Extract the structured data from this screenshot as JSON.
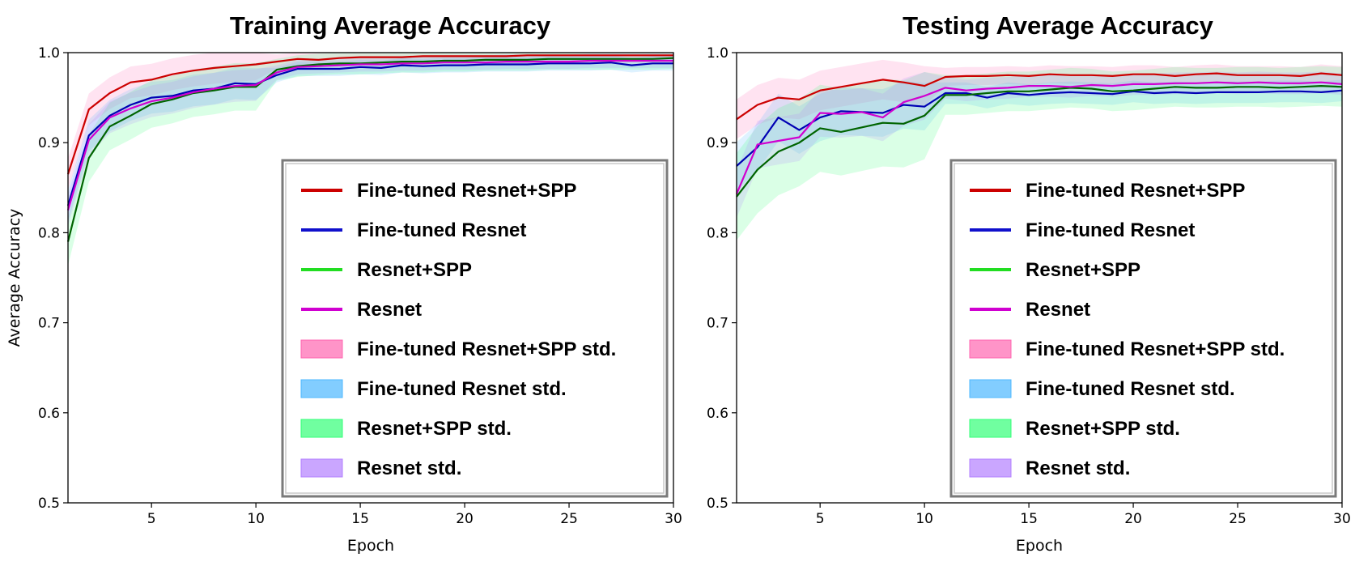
{
  "chart_data": [
    {
      "type": "line",
      "title": "Training Average Accuracy",
      "xlabel": "Epoch",
      "ylabel": "Average Accuracy",
      "xlim": [
        1,
        30
      ],
      "ylim": [
        0.5,
        1.0
      ],
      "xticks": [
        5,
        10,
        15,
        20,
        25,
        30
      ],
      "yticks": [
        0.5,
        0.6,
        0.7,
        0.8,
        0.9,
        1.0
      ],
      "tick_labels_x": [
        "5",
        "10",
        "15",
        "20",
        "25",
        "30"
      ],
      "tick_labels_y": [
        "0.5",
        "0.6",
        "0.7",
        "0.8",
        "0.9",
        "1.0"
      ],
      "grid": false,
      "legend_position": "lower-right",
      "x": [
        1,
        2,
        3,
        4,
        5,
        6,
        7,
        8,
        9,
        10,
        11,
        12,
        13,
        14,
        15,
        16,
        17,
        18,
        19,
        20,
        21,
        22,
        23,
        24,
        25,
        26,
        27,
        28,
        29,
        30
      ],
      "series": [
        {
          "name": "Fine-tuned Resnet+SPP",
          "color": "#cc0000",
          "values": [
            0.865,
            0.937,
            0.955,
            0.967,
            0.97,
            0.976,
            0.98,
            0.983,
            0.985,
            0.987,
            0.99,
            0.993,
            0.992,
            0.994,
            0.995,
            0.995,
            0.995,
            0.996,
            0.996,
            0.996,
            0.996,
            0.996,
            0.997,
            0.997,
            0.997,
            0.997,
            0.997,
            0.997,
            0.997,
            0.997
          ]
        },
        {
          "name": "Fine-tuned Resnet",
          "color": "#0000b4",
          "values": [
            0.83,
            0.908,
            0.93,
            0.942,
            0.95,
            0.952,
            0.958,
            0.96,
            0.966,
            0.965,
            0.975,
            0.982,
            0.982,
            0.982,
            0.984,
            0.983,
            0.986,
            0.985,
            0.986,
            0.986,
            0.987,
            0.987,
            0.987,
            0.988,
            0.988,
            0.988,
            0.989,
            0.986,
            0.988,
            0.988
          ]
        },
        {
          "name": "Resnet+SPP",
          "color": "#006400",
          "values": [
            0.79,
            0.883,
            0.918,
            0.93,
            0.943,
            0.948,
            0.955,
            0.958,
            0.962,
            0.962,
            0.981,
            0.985,
            0.987,
            0.988,
            0.988,
            0.989,
            0.99,
            0.99,
            0.991,
            0.991,
            0.992,
            0.992,
            0.992,
            0.993,
            0.993,
            0.993,
            0.993,
            0.993,
            0.993,
            0.994
          ]
        },
        {
          "name": "Resnet",
          "color": "#d000d0",
          "values": [
            0.825,
            0.903,
            0.928,
            0.938,
            0.946,
            0.95,
            0.956,
            0.96,
            0.963,
            0.964,
            0.978,
            0.984,
            0.985,
            0.986,
            0.987,
            0.987,
            0.988,
            0.988,
            0.989,
            0.989,
            0.989,
            0.99,
            0.99,
            0.99,
            0.99,
            0.991,
            0.991,
            0.991,
            0.991,
            0.991
          ]
        }
      ],
      "std_bands": [
        {
          "name": "Fine-tuned Resnet+SPP std.",
          "color": "#ff66b0",
          "spread": 0.008
        },
        {
          "name": "Fine-tuned Resnet std.",
          "color": "#4db8ff",
          "spread": 0.008
        },
        {
          "name": "Resnet+SPP std.",
          "color": "#33ff77",
          "spread": 0.012
        },
        {
          "name": "Resnet std.",
          "color": "#b380ff",
          "spread": 0.008
        }
      ]
    },
    {
      "type": "line",
      "title": "Testing Average Accuracy",
      "xlabel": "Epoch",
      "ylabel": "",
      "xlim": [
        1,
        30
      ],
      "ylim": [
        0.5,
        1.0
      ],
      "xticks": [
        5,
        10,
        15,
        20,
        25,
        30
      ],
      "yticks": [
        0.5,
        0.6,
        0.7,
        0.8,
        0.9,
        1.0
      ],
      "tick_labels_x": [
        "5",
        "10",
        "15",
        "20",
        "25",
        "30"
      ],
      "tick_labels_y": [
        "0.5",
        "0.6",
        "0.7",
        "0.8",
        "0.9",
        "1.0"
      ],
      "grid": false,
      "legend_position": "lower-right",
      "x": [
        1,
        2,
        3,
        4,
        5,
        6,
        7,
        8,
        9,
        10,
        11,
        12,
        13,
        14,
        15,
        16,
        17,
        18,
        19,
        20,
        21,
        22,
        23,
        24,
        25,
        26,
        27,
        28,
        29,
        30
      ],
      "series": [
        {
          "name": "Fine-tuned Resnet+SPP",
          "color": "#cc0000",
          "values": [
            0.926,
            0.942,
            0.95,
            0.948,
            0.958,
            0.962,
            0.966,
            0.97,
            0.967,
            0.963,
            0.973,
            0.974,
            0.974,
            0.975,
            0.974,
            0.976,
            0.975,
            0.975,
            0.974,
            0.976,
            0.976,
            0.974,
            0.976,
            0.977,
            0.975,
            0.975,
            0.975,
            0.974,
            0.977,
            0.975
          ]
        },
        {
          "name": "Fine-tuned Resnet",
          "color": "#0000b4",
          "values": [
            0.874,
            0.895,
            0.928,
            0.914,
            0.928,
            0.935,
            0.934,
            0.933,
            0.942,
            0.94,
            0.955,
            0.955,
            0.95,
            0.955,
            0.953,
            0.955,
            0.956,
            0.955,
            0.954,
            0.957,
            0.955,
            0.956,
            0.955,
            0.956,
            0.956,
            0.956,
            0.957,
            0.957,
            0.956,
            0.958
          ]
        },
        {
          "name": "Resnet+SPP",
          "color": "#006400",
          "values": [
            0.84,
            0.87,
            0.89,
            0.9,
            0.916,
            0.912,
            0.917,
            0.922,
            0.921,
            0.93,
            0.953,
            0.953,
            0.955,
            0.957,
            0.957,
            0.959,
            0.961,
            0.96,
            0.957,
            0.958,
            0.96,
            0.962,
            0.961,
            0.961,
            0.962,
            0.962,
            0.961,
            0.962,
            0.963,
            0.962
          ]
        },
        {
          "name": "Resnet",
          "color": "#d000d0",
          "values": [
            0.843,
            0.898,
            0.902,
            0.906,
            0.933,
            0.932,
            0.934,
            0.928,
            0.945,
            0.952,
            0.961,
            0.958,
            0.96,
            0.961,
            0.963,
            0.963,
            0.962,
            0.964,
            0.963,
            0.965,
            0.965,
            0.966,
            0.966,
            0.967,
            0.966,
            0.967,
            0.966,
            0.966,
            0.967,
            0.965
          ]
        }
      ],
      "std_bands": [
        {
          "name": "Fine-tuned Resnet+SPP std.",
          "color": "#ff66b0",
          "spread": 0.01
        },
        {
          "name": "Fine-tuned Resnet std.",
          "color": "#4db8ff",
          "spread": 0.012
        },
        {
          "name": "Resnet+SPP std.",
          "color": "#33ff77",
          "spread": 0.022
        },
        {
          "name": "Resnet std.",
          "color": "#b380ff",
          "spread": 0.012
        }
      ]
    }
  ]
}
